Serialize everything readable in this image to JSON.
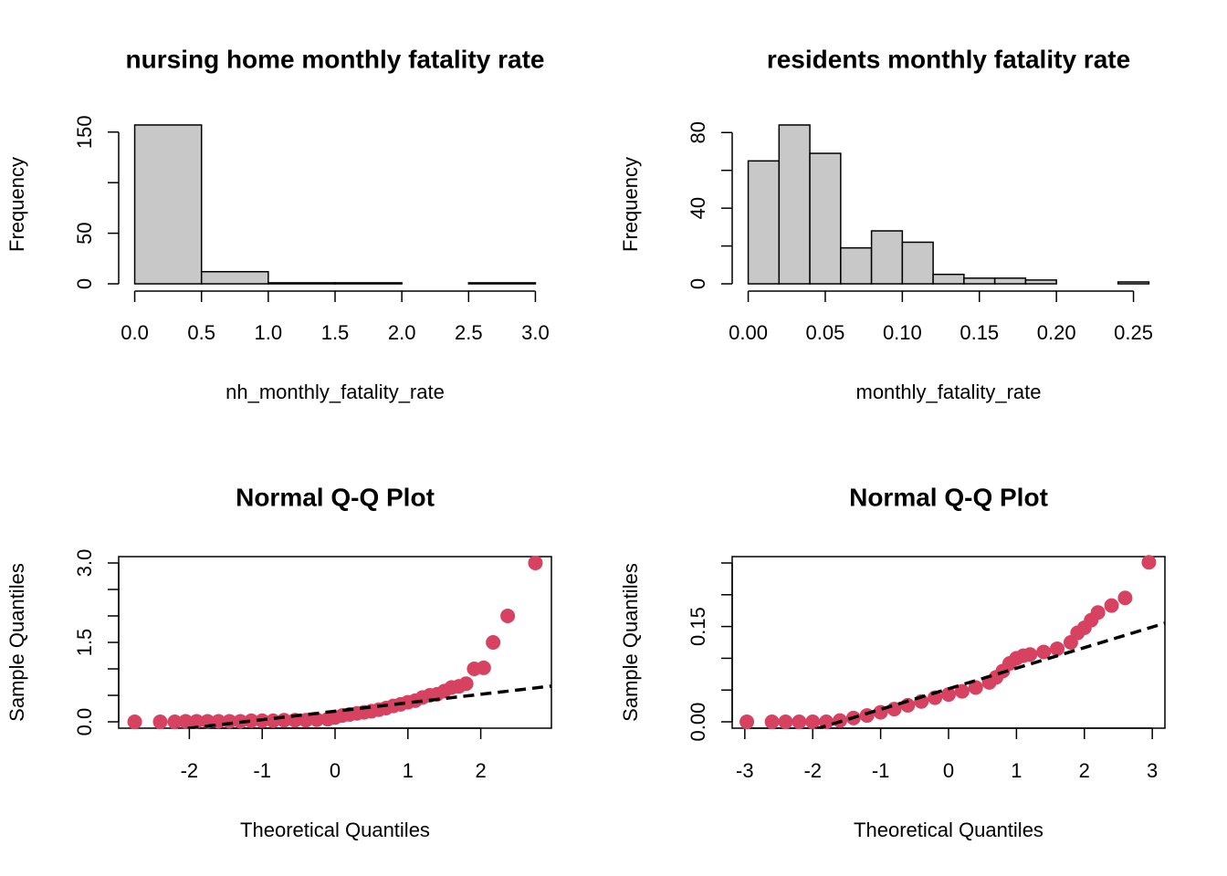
{
  "chart_data": [
    {
      "type": "histogram",
      "title": "nursing home monthly fatality rate",
      "x_label": "nh_monthly_fatality_rate",
      "y_label": "Frequency",
      "bins": [
        0,
        0.5,
        1,
        1.5,
        2,
        2.5,
        3
      ],
      "counts": [
        157,
        12,
        1,
        1,
        0,
        1
      ],
      "color": "#c8c8c8",
      "xlim": [
        0,
        3
      ],
      "ylim": [
        0,
        157
      ],
      "xticks": [
        {
          "value": 0,
          "label": "0.0"
        },
        0.5,
        {
          "value": 1,
          "label": "1.0"
        },
        1.5,
        {
          "value": 2,
          "label": "2.0"
        },
        2.5,
        {
          "value": 3,
          "label": "3.0"
        }
      ],
      "yticks": [
        0,
        50,
        {
          "value": 100,
          "label": null
        },
        150
      ]
    },
    {
      "type": "histogram",
      "title": "residents monthly fatality rate",
      "x_label": "monthly_fatality_rate",
      "y_label": "Frequency",
      "bins": [
        0,
        0.02,
        0.04,
        0.06,
        0.08,
        0.1,
        0.12,
        0.14,
        0.16,
        0.18,
        0.2,
        0.22,
        0.24,
        0.26
      ],
      "counts": [
        65,
        84,
        69,
        19,
        28,
        22,
        5,
        3,
        3,
        2,
        0,
        0,
        1
      ],
      "color": "#c8c8c8",
      "xlim": [
        0,
        0.26
      ],
      "ylim": [
        0,
        84
      ],
      "xticks": [
        {
          "value": 0,
          "label": "0.00"
        },
        0.05,
        {
          "value": 0.1,
          "label": "0.10"
        },
        0.15,
        {
          "value": 0.2,
          "label": "0.20"
        },
        0.25
      ],
      "yticks": [
        0,
        {
          "value": 20,
          "label": null
        },
        40,
        {
          "value": 60,
          "label": null
        },
        80
      ]
    },
    {
      "type": "qq",
      "title": "Normal Q-Q Plot",
      "x_label": "Theoretical Quantiles",
      "y_label": "Sample Quantiles",
      "color": "#d6425f",
      "x": [
        -2.75,
        -2.4,
        -2.2,
        -2.05,
        -1.9,
        -1.75,
        -1.6,
        -1.45,
        -1.3,
        -1.15,
        -1.0,
        -0.85,
        -0.7,
        -0.55,
        -0.4,
        -0.25,
        -0.1,
        0.0,
        0.1,
        0.2,
        0.3,
        0.4,
        0.5,
        0.6,
        0.7,
        0.8,
        0.9,
        1.0,
        1.1,
        1.2,
        1.3,
        1.4,
        1.5,
        1.6,
        1.7,
        1.8,
        1.91,
        2.04,
        2.17,
        2.37,
        2.75
      ],
      "y": [
        0.0,
        0.0,
        0.0,
        0.01,
        0.01,
        0.01,
        0.01,
        0.01,
        0.01,
        0.02,
        0.02,
        0.02,
        0.03,
        0.03,
        0.03,
        0.04,
        0.05,
        0.08,
        0.12,
        0.14,
        0.16,
        0.18,
        0.2,
        0.23,
        0.26,
        0.3,
        0.33,
        0.37,
        0.4,
        0.46,
        0.5,
        0.52,
        0.58,
        0.65,
        0.67,
        0.72,
        1.0,
        1.02,
        1.5,
        2.0,
        3.0
      ],
      "qqline": {
        "intercept": 0.2,
        "slope": 0.16
      },
      "xlim": [
        -2.75,
        2.75
      ],
      "ylim": [
        0,
        3
      ],
      "xticks": [
        -2,
        -1,
        0,
        1,
        2
      ],
      "yticks": [
        {
          "value": 0,
          "label": "0.0"
        },
        {
          "value": 0.5,
          "label": null
        },
        {
          "value": 1,
          "label": null
        },
        1.5,
        {
          "value": 2,
          "label": null
        },
        {
          "value": 2.5,
          "label": null
        },
        {
          "value": 3,
          "label": "3.0"
        }
      ]
    },
    {
      "type": "qq",
      "title": "Normal Q-Q Plot",
      "x_label": "Theoretical Quantiles",
      "y_label": "Sample Quantiles",
      "color": "#d6425f",
      "x": [
        -2.97,
        -2.6,
        -2.4,
        -2.2,
        -2.0,
        -1.8,
        -1.6,
        -1.4,
        -1.2,
        -1.0,
        -0.8,
        -0.6,
        -0.4,
        -0.2,
        0,
        0.2,
        0.4,
        0.6,
        0.7,
        0.8,
        0.9,
        1.0,
        1.1,
        1.2,
        1.4,
        1.6,
        1.8,
        1.9,
        2.0,
        2.1,
        2.2,
        2.4,
        2.6,
        2.95
      ],
      "y": [
        0,
        0,
        0,
        0,
        0,
        0,
        0.002,
        0.006,
        0.01,
        0.015,
        0.02,
        0.026,
        0.032,
        0.038,
        0.043,
        0.048,
        0.054,
        0.062,
        0.07,
        0.08,
        0.092,
        0.1,
        0.104,
        0.106,
        0.11,
        0.115,
        0.125,
        0.14,
        0.148,
        0.16,
        0.172,
        0.183,
        0.195,
        0.251
      ],
      "qqline": {
        "intercept": 0.052,
        "slope": 0.0324
      },
      "xlim": [
        -2.95,
        2.95
      ],
      "ylim": [
        0,
        0.25
      ],
      "xticks": [
        -3,
        -2,
        -1,
        0,
        1,
        2,
        3
      ],
      "yticks": [
        {
          "value": 0,
          "label": "0.00"
        },
        {
          "value": 0.05,
          "label": null
        },
        {
          "value": 0.1,
          "label": null
        },
        0.15,
        {
          "value": 0.2,
          "label": null
        },
        {
          "value": 0.25,
          "label": null
        }
      ]
    }
  ]
}
